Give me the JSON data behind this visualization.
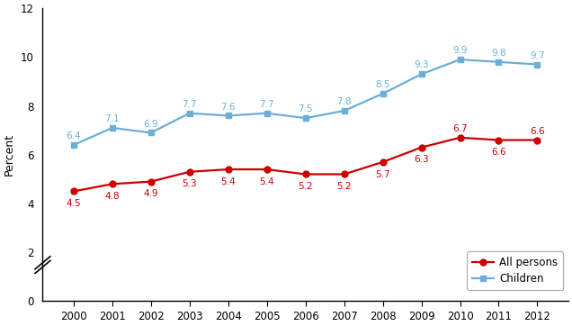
{
  "years": [
    2000,
    2001,
    2002,
    2003,
    2004,
    2005,
    2006,
    2007,
    2008,
    2009,
    2010,
    2011,
    2012
  ],
  "all_persons": [
    4.5,
    4.8,
    4.9,
    5.3,
    5.4,
    5.4,
    5.2,
    5.2,
    5.7,
    6.3,
    6.7,
    6.6,
    6.6
  ],
  "children": [
    6.4,
    7.1,
    6.9,
    7.7,
    7.6,
    7.7,
    7.5,
    7.8,
    8.5,
    9.3,
    9.9,
    9.8,
    9.7
  ],
  "all_persons_color": "#cc0000",
  "children_color": "#6baed6",
  "ylim": [
    0,
    12
  ],
  "yticks": [
    0,
    2,
    4,
    6,
    8,
    10,
    12
  ],
  "ylabel": "Percent",
  "legend_labels": [
    "All persons",
    "Children"
  ],
  "ap_label_va": [
    "bottom",
    "bottom",
    "bottom",
    "bottom",
    "bottom",
    "bottom",
    "bottom",
    "bottom",
    "bottom",
    "bottom",
    "bottom",
    "bottom",
    "bottom"
  ],
  "ap_label_dy": [
    -0.32,
    -0.32,
    -0.32,
    -0.32,
    -0.32,
    -0.32,
    -0.32,
    -0.32,
    -0.32,
    -0.32,
    0.18,
    -0.32,
    0.18
  ],
  "ch_label_dy": [
    0.18,
    0.18,
    0.18,
    0.18,
    0.18,
    0.18,
    0.18,
    0.18,
    0.18,
    0.18,
    0.18,
    0.18,
    0.18
  ]
}
